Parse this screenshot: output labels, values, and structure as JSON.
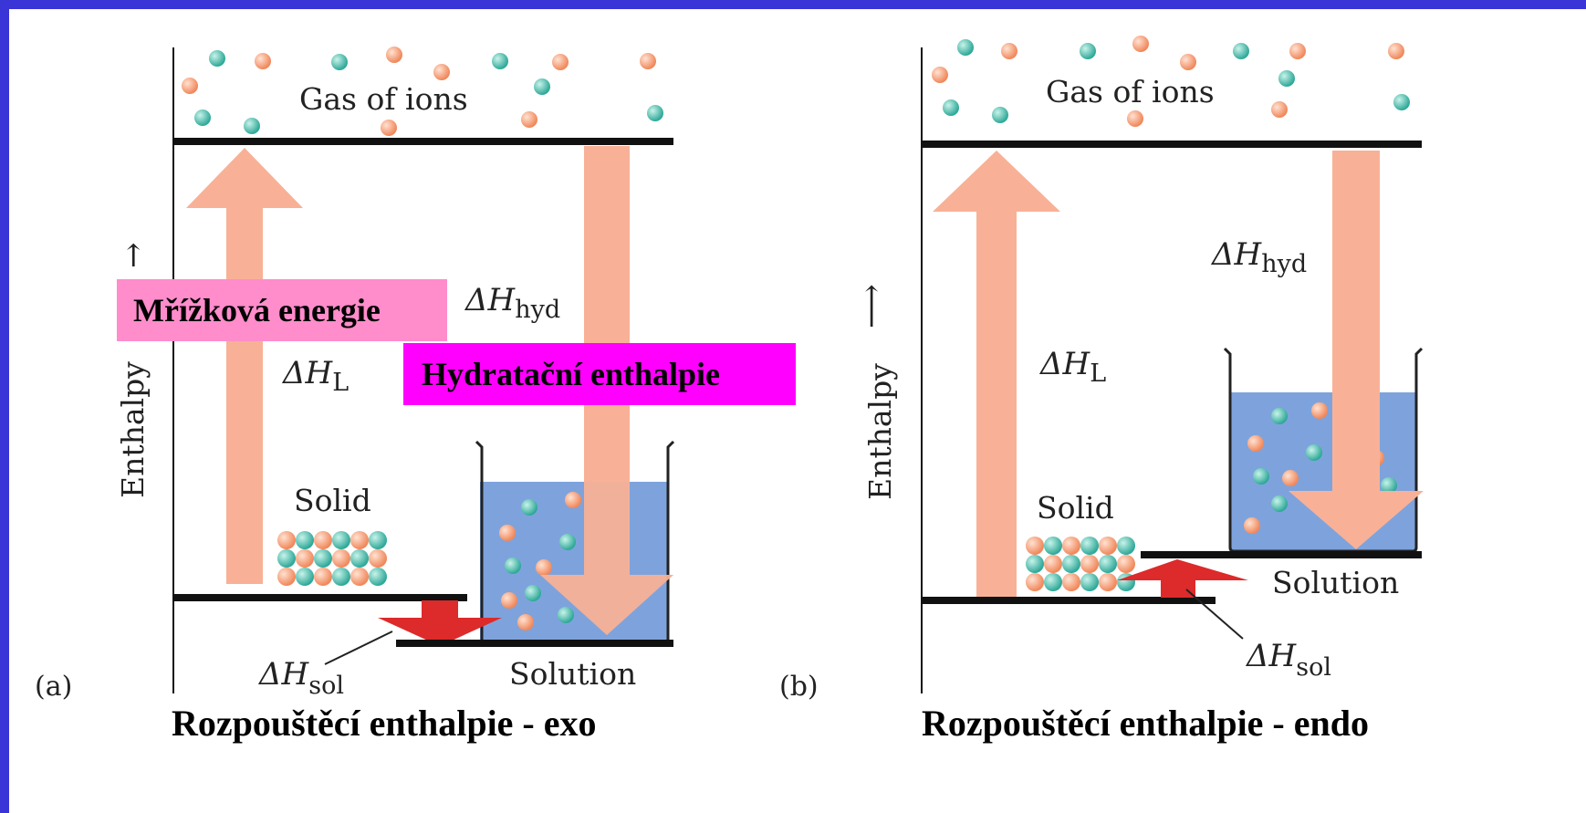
{
  "panel_a": {
    "tag": "(a)",
    "gas_label": "Gas of ions",
    "axis_label": "Enthalpy",
    "axis_arrow": "↑",
    "lattice_symbol": "ΔH",
    "lattice_sub": "L",
    "hyd_symbol": "ΔH",
    "hyd_sub": "hyd",
    "solid_label": "Solid",
    "solution_label": "Solution",
    "sol_symbol": "ΔH",
    "sol_sub": "sol",
    "caption": "Rozpouštěcí enthalpie - exo"
  },
  "panel_b": {
    "tag": "(b)",
    "gas_label": "Gas of ions",
    "axis_label": "Enthalpy",
    "axis_arrow": "⟶",
    "lattice_symbol": "ΔH",
    "lattice_sub": "L",
    "hyd_symbol": "ΔH",
    "hyd_sub": "hyd",
    "solid_label": "Solid",
    "solution_label": "Solution",
    "sol_symbol": "ΔH",
    "sol_sub": "sol",
    "caption": "Rozpouštěcí enthalpie - endo"
  },
  "highlights": {
    "lattice_energy": "Mřížková energie",
    "hydration_enthalpy": "Hydratační enthalpie"
  },
  "colors": {
    "border": "#3a35d6",
    "big_arrow": "#f8b196",
    "red_arrow": "#dd2a2a",
    "orange_ion": "#f39a72",
    "teal_ion": "#3fb8a8",
    "water": "#7ea3dc",
    "highlight_lattice": "#ff8ccb",
    "highlight_hydration": "#ff00ff"
  }
}
